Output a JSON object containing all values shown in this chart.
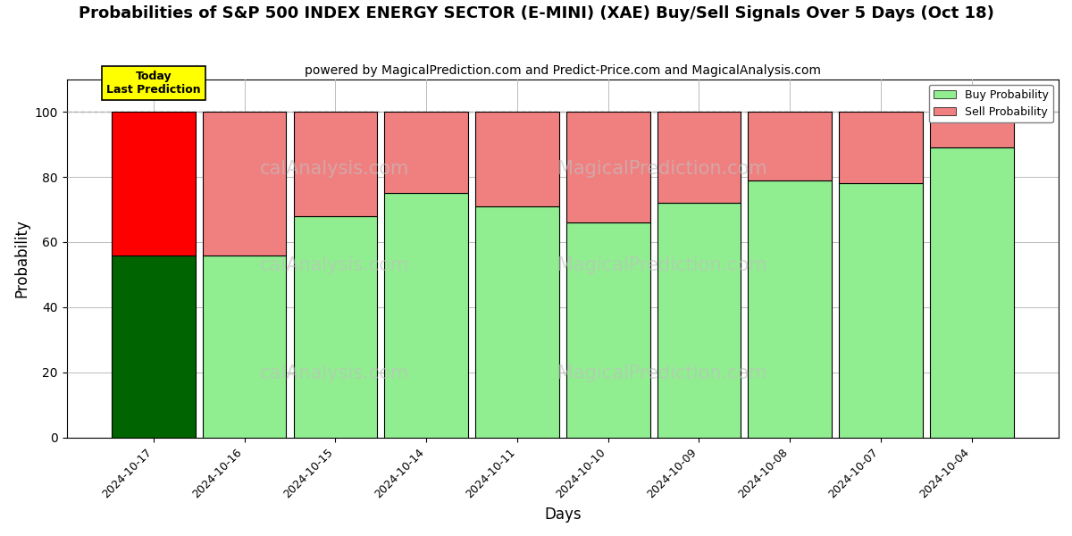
{
  "title": "Probabilities of S&P 500 INDEX ENERGY SECTOR (E-MINI) (XAE) Buy/Sell Signals Over 5 Days (Oct 18)",
  "subtitle": "powered by MagicalPrediction.com and Predict-Price.com and MagicalAnalysis.com",
  "xlabel": "Days",
  "ylabel": "Probability",
  "dates": [
    "2024-10-17",
    "2024-10-16",
    "2024-10-15",
    "2024-10-14",
    "2024-10-11",
    "2024-10-10",
    "2024-10-09",
    "2024-10-08",
    "2024-10-07",
    "2024-10-04"
  ],
  "buy_probs": [
    56,
    56,
    68,
    75,
    71,
    66,
    72,
    79,
    78,
    89
  ],
  "sell_probs": [
    44,
    44,
    32,
    25,
    29,
    34,
    28,
    21,
    22,
    11
  ],
  "today_bar_buy_color": "#006400",
  "today_bar_sell_color": "#FF0000",
  "normal_bar_buy_color": "#90EE90",
  "normal_bar_sell_color": "#F08080",
  "bar_edge_color": "#000000",
  "today_box_color": "#FFFF00",
  "today_box_text": "Today\nLast Prediction",
  "legend_buy_label": "Buy Probability",
  "legend_sell_label": "Sell Probability",
  "legend_buy_color": "#90EE90",
  "legend_sell_color": "#F08080",
  "watermark_rows": [
    [
      "calAnalysis.com",
      "MagicalPrediction.com"
    ],
    [
      "calAnalysis.com",
      "MagicalPrediction.com"
    ],
    [
      "calAnalysis.com",
      "MagicalPrediction.com"
    ]
  ],
  "ylim": [
    0,
    110
  ],
  "grid_color": "#bbbbbb",
  "background_color": "#ffffff",
  "title_fontsize": 13,
  "subtitle_fontsize": 10,
  "axis_label_fontsize": 12,
  "bar_width": 0.92
}
